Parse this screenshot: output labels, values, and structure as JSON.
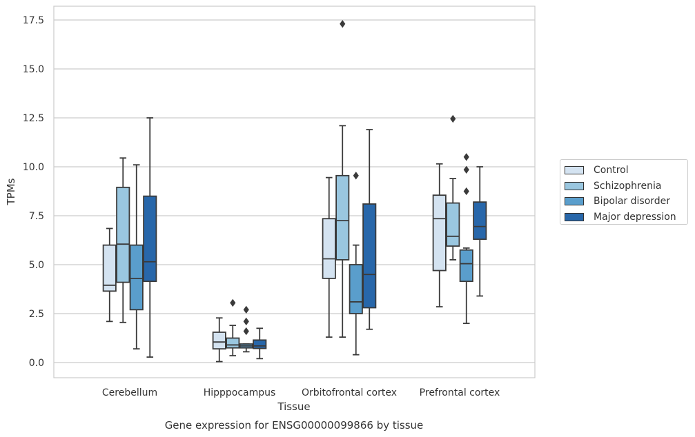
{
  "chart_data": {
    "type": "box",
    "title": "Gene expression for ENSG00000099866 by tissue",
    "xlabel": "Tissue",
    "ylabel": "TPMs",
    "ylim": [
      -0.8,
      18.2
    ],
    "yticks": [
      "0.0",
      "2.5",
      "5.0",
      "7.5",
      "10.0",
      "12.5",
      "15.0",
      "17.5"
    ],
    "categories": [
      "Cerebellum",
      "Hipppocampus",
      "Orbitofrontal cortex",
      "Prefrontal cortex"
    ],
    "grid": "horizontal",
    "legend_position": "right",
    "series": [
      {
        "name": "Control",
        "color": "#d4e3f1",
        "boxes": [
          {
            "whislo": 2.1,
            "q1": 3.65,
            "med": 3.95,
            "q3": 6.0,
            "whishi": 6.85,
            "fliers": []
          },
          {
            "whislo": 0.05,
            "q1": 0.7,
            "med": 1.05,
            "q3": 1.55,
            "whishi": 2.28,
            "fliers": []
          },
          {
            "whislo": 1.3,
            "q1": 4.3,
            "med": 5.3,
            "q3": 7.35,
            "whishi": 9.45,
            "fliers": []
          },
          {
            "whislo": 2.85,
            "q1": 4.7,
            "med": 7.35,
            "q3": 8.55,
            "whishi": 10.15,
            "fliers": []
          }
        ]
      },
      {
        "name": "Schizophrenia",
        "color": "#9ac7e0",
        "boxes": [
          {
            "whislo": 2.05,
            "q1": 4.1,
            "med": 6.05,
            "q3": 8.95,
            "whishi": 10.45,
            "fliers": []
          },
          {
            "whislo": 0.35,
            "q1": 0.75,
            "med": 0.9,
            "q3": 1.25,
            "whishi": 1.9,
            "fliers": [
              3.05
            ]
          },
          {
            "whislo": 1.3,
            "q1": 5.25,
            "med": 7.25,
            "q3": 9.55,
            "whishi": 12.1,
            "fliers": [
              17.3
            ]
          },
          {
            "whislo": 5.25,
            "q1": 5.95,
            "med": 6.45,
            "q3": 8.15,
            "whishi": 9.4,
            "fliers": [
              12.45
            ]
          }
        ]
      },
      {
        "name": "Bipolar disorder",
        "color": "#5a9ecc",
        "boxes": [
          {
            "whislo": 0.7,
            "q1": 2.7,
            "med": 4.3,
            "q3": 6.0,
            "whishi": 10.1,
            "fliers": []
          },
          {
            "whislo": 0.55,
            "q1": 0.75,
            "med": 0.85,
            "q3": 0.95,
            "whishi": 0.95,
            "fliers": [
              1.6,
              2.1,
              2.7
            ]
          },
          {
            "whislo": 0.4,
            "q1": 2.5,
            "med": 3.1,
            "q3": 5.0,
            "whishi": 6.0,
            "fliers": [
              9.55
            ]
          },
          {
            "whislo": 2.0,
            "q1": 4.15,
            "med": 5.05,
            "q3": 5.75,
            "whishi": 5.85,
            "fliers": [
              8.75,
              9.85,
              10.5
            ]
          }
        ]
      },
      {
        "name": "Major depression",
        "color": "#2867aa",
        "boxes": [
          {
            "whislo": 0.28,
            "q1": 4.15,
            "med": 5.15,
            "q3": 8.5,
            "whishi": 12.5,
            "fliers": []
          },
          {
            "whislo": 0.2,
            "q1": 0.72,
            "med": 0.85,
            "q3": 1.15,
            "whishi": 1.75,
            "fliers": []
          },
          {
            "whislo": 1.7,
            "q1": 2.8,
            "med": 4.5,
            "q3": 8.1,
            "whishi": 11.9,
            "fliers": []
          },
          {
            "whislo": 3.4,
            "q1": 6.3,
            "med": 6.95,
            "q3": 8.2,
            "whishi": 10.0,
            "fliers": []
          }
        ]
      }
    ]
  }
}
